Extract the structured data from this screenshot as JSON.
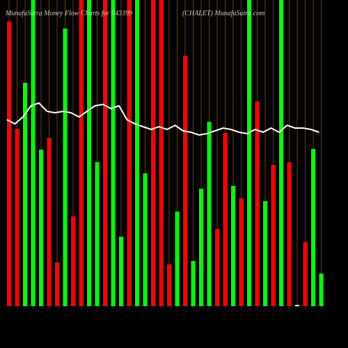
{
  "chart_data": {
    "type": "bar",
    "title": "MunafaSutra  Money Flow Charts for 543399",
    "subtitle": "(CHALET) MunafaSutra.com",
    "values": [
      409,
      255,
      321,
      440,
      225,
      242,
      63,
      399,
      129,
      440,
      440,
      207,
      440,
      440,
      100,
      440,
      440,
      191,
      440,
      440,
      60,
      136,
      360,
      65,
      169,
      265,
      111,
      249,
      173,
      155,
      440,
      294,
      151,
      203,
      440,
      207,
      2,
      92,
      226,
      47
    ],
    "colors": [
      "#ff0000",
      "#ff0000",
      "#00ff00",
      "#00ff00",
      "#00ff00",
      "#ff0000",
      "#ff0000",
      "#00ff00",
      "#ff0000",
      "#ff0000",
      "#00ff00",
      "#00ff00",
      "#ff0000",
      "#00ff00",
      "#00ff00",
      "#ff0000",
      "#00ff00",
      "#00ff00",
      "#ff0000",
      "#ff0000",
      "#ff0000",
      "#00ff00",
      "#ff0000",
      "#00ff00",
      "#00ff00",
      "#00ff00",
      "#ff0000",
      "#ff0000",
      "#00ff00",
      "#ff0000",
      "#00ff00",
      "#ff0000",
      "#00ff00",
      "#ff0000",
      "#00ff00",
      "#ff0000",
      "#ffffff",
      "#ff0000",
      "#00ff00",
      "#00ff00"
    ],
    "line": {
      "color": "#ffffff",
      "values": [
        268,
        262,
        272,
        288,
        292,
        280,
        278,
        280,
        278,
        272,
        280,
        288,
        290,
        284,
        288,
        268,
        262,
        258,
        254,
        258,
        254,
        260,
        252,
        250,
        246,
        248,
        252,
        256,
        254,
        250,
        248,
        254,
        250,
        256,
        250,
        260,
        256,
        256,
        254,
        250
      ]
    },
    "ylim": [
      0,
      440
    ],
    "grid_color": "#7a3a00"
  }
}
